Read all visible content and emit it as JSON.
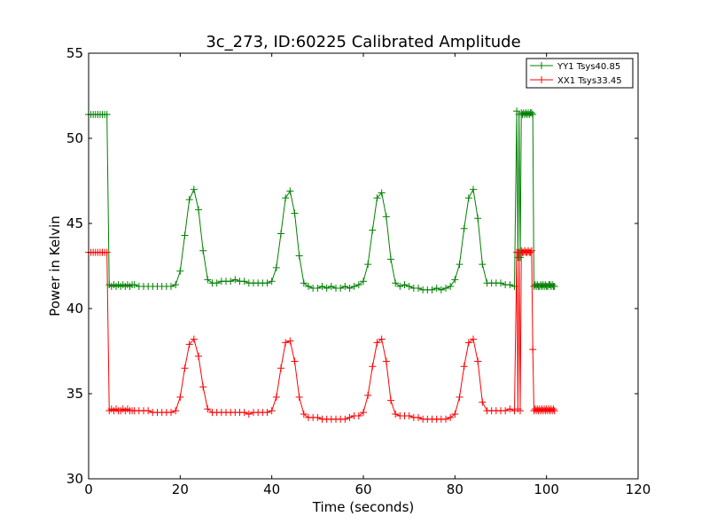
{
  "chart_data": {
    "type": "line",
    "title": "3c_273, ID:60225 Calibrated Amplitude",
    "xlabel": "Time (seconds)",
    "ylabel": "Power in Kelvin",
    "xlim": [
      0,
      120
    ],
    "ylim": [
      30,
      55
    ],
    "xticks": [
      0,
      20,
      40,
      60,
      80,
      100,
      120
    ],
    "yticks": [
      30,
      35,
      40,
      45,
      50,
      55
    ],
    "grid": false,
    "legend_position": "top-right",
    "marker": "+",
    "series": [
      {
        "name": "YY1 Tsys40.85",
        "color": "#008000",
        "segments": [
          {
            "x0": 0,
            "step": 0.5,
            "y": [
              51.4,
              51.4,
              51.4,
              51.4,
              51.4,
              51.4,
              51.4,
              51.4,
              51.4
            ]
          },
          {
            "x0": 4.5,
            "step": 0.5,
            "y": [
              41.4,
              41.3,
              41.4,
              41.3,
              41.4,
              41.3,
              41.4,
              41.3,
              41.4,
              41.3,
              41.4
            ]
          },
          {
            "x0": 10,
            "step": 1,
            "y": [
              41.4,
              41.3,
              41.3,
              41.3,
              41.3,
              41.3,
              41.3,
              41.3,
              41.3,
              41.4,
              42.2,
              44.3,
              46.4,
              47.0,
              45.8,
              43.4,
              41.7,
              41.5,
              41.5,
              41.6,
              41.6,
              41.6,
              41.7,
              41.6,
              41.6,
              41.5,
              41.5,
              41.5,
              41.5,
              41.5,
              41.6,
              42.4,
              44.4,
              46.5,
              46.9,
              45.6,
              43.1,
              41.5,
              41.3,
              41.2,
              41.2,
              41.3,
              41.2,
              41.3,
              41.2,
              41.2,
              41.3,
              41.2,
              41.3,
              41.4,
              41.6,
              42.6,
              44.6,
              46.5,
              46.8,
              45.4,
              42.9,
              41.5,
              41.3,
              41.4,
              41.3,
              41.2,
              41.2,
              41.1,
              41.1,
              41.1,
              41.2,
              41.1,
              41.2,
              41.3,
              41.7,
              42.6,
              44.7,
              46.5,
              47.0,
              45.3,
              42.6,
              41.5,
              41.5,
              41.5,
              41.5,
              41.4,
              41.4,
              41.3
            ]
          },
          {
            "x0": 93.5,
            "step": 0.25,
            "y": [
              51.6,
              43.0,
              51.4,
              43.0,
              51.5,
              51.4,
              51.5,
              51.4,
              51.5,
              51.4,
              51.5,
              51.4,
              51.5,
              51.5,
              51.4
            ]
          },
          {
            "x0": 97.25,
            "step": 0.25,
            "y": [
              41.3,
              41.4,
              41.3,
              41.4,
              41.3,
              41.3,
              41.4,
              41.3,
              41.4,
              41.3,
              41.4,
              41.3,
              41.3,
              41.4,
              41.4,
              41.3,
              41.4,
              41.3,
              41.3
            ]
          }
        ]
      },
      {
        "name": "XX1 Tsys33.45",
        "color": "#ff0000",
        "segments": [
          {
            "x0": 0,
            "step": 0.5,
            "y": [
              43.3,
              43.3,
              43.3,
              43.3,
              43.3,
              43.3,
              43.3,
              43.3,
              43.3
            ]
          },
          {
            "x0": 4.5,
            "step": 0.5,
            "y": [
              34.0,
              34.1,
              34.0,
              34.1,
              34.0,
              34.0,
              34.1,
              34.0,
              34.1,
              34.0,
              34.0
            ]
          },
          {
            "x0": 10,
            "step": 1,
            "y": [
              34.0,
              34.0,
              34.0,
              34.0,
              33.9,
              33.9,
              33.9,
              33.9,
              33.9,
              34.0,
              34.8,
              36.5,
              37.9,
              38.2,
              37.2,
              35.4,
              34.1,
              33.9,
              33.9,
              33.9,
              33.9,
              33.9,
              33.9,
              33.9,
              33.9,
              33.8,
              33.9,
              33.9,
              33.9,
              33.9,
              34.0,
              34.8,
              36.5,
              38.0,
              38.1,
              36.9,
              34.8,
              33.8,
              33.6,
              33.6,
              33.6,
              33.5,
              33.5,
              33.5,
              33.5,
              33.5,
              33.5,
              33.6,
              33.7,
              33.7,
              33.9,
              34.9,
              36.6,
              38.0,
              38.2,
              36.9,
              34.6,
              33.8,
              33.7,
              33.7,
              33.7,
              33.6,
              33.6,
              33.5,
              33.5,
              33.5,
              33.5,
              33.5,
              33.5,
              33.6,
              33.8,
              34.8,
              36.6,
              38.0,
              38.2,
              36.9,
              34.5,
              34.0,
              34.0,
              34.0,
              34.0,
              34.0,
              34.1,
              34.0
            ]
          },
          {
            "x0": 93.5,
            "step": 0.25,
            "y": [
              43.3,
              34.1,
              43.3,
              34.0,
              43.4,
              43.3,
              43.3,
              43.4,
              43.3,
              43.3,
              43.4,
              43.3,
              43.3,
              43.4,
              37.6
            ]
          },
          {
            "x0": 97.25,
            "step": 0.25,
            "y": [
              34.0,
              34.1,
              34.0,
              34.1,
              34.0,
              34.1,
              34.0,
              34.1,
              34.0,
              34.1,
              34.0,
              34.1,
              34.0,
              34.1,
              34.0,
              34.1,
              34.0,
              34.1,
              34.0
            ]
          }
        ]
      }
    ]
  }
}
